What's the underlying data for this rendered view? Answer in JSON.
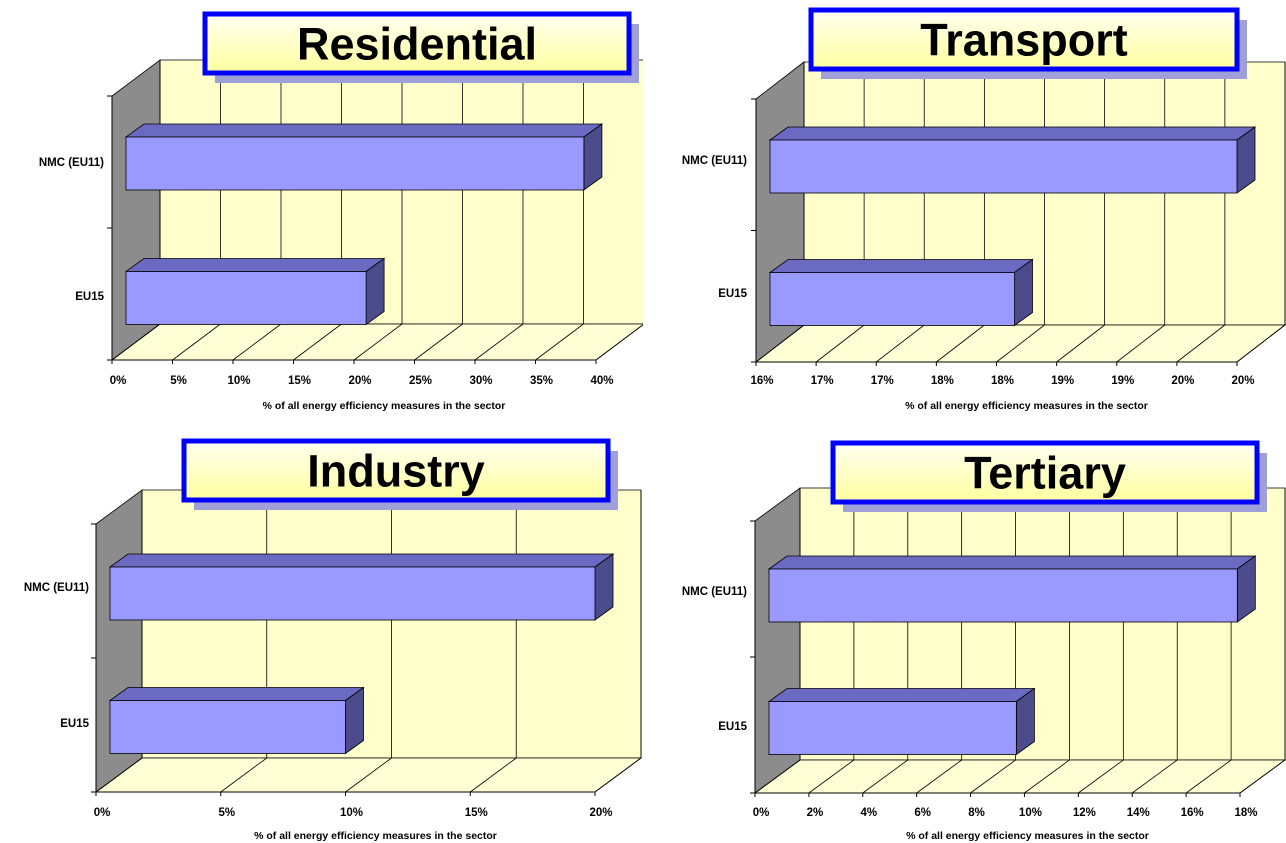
{
  "colors": {
    "wall_back": "#FFFFCC",
    "wall_floor": "#FFFFD6",
    "wall_side": "#8C8C8C",
    "bar_front": "#9999FF",
    "bar_top": "#6A6AC2",
    "bar_side": "#4C4C8C",
    "title_border": "#0000FF",
    "title_shadow": "#9FA0D8"
  },
  "chart_data": [
    {
      "type": "bar",
      "orientation": "horizontal-3d",
      "title": "Residential",
      "categories": [
        "NMC (EU11)",
        "EU15"
      ],
      "values": [
        0.39,
        0.21
      ],
      "xlim": [
        0,
        0.4
      ],
      "xticks": [
        "0%",
        "5%",
        "10%",
        "15%",
        "20%",
        "25%",
        "30%",
        "35%",
        "40%"
      ],
      "xlabel": "% of all energy efficiency measures in the sector",
      "grid": true
    },
    {
      "type": "bar",
      "orientation": "horizontal-3d",
      "title": "Transport",
      "categories": [
        "NMC (EU11)",
        "EU15"
      ],
      "values": [
        0.2,
        0.1815
      ],
      "xlim": [
        0.16,
        0.2
      ],
      "xticks": [
        "16%",
        "17%",
        "17%",
        "18%",
        "18%",
        "19%",
        "19%",
        "20%",
        "20%"
      ],
      "xlabel": "% of all energy efficiency measures in the sector",
      "grid": true
    },
    {
      "type": "bar",
      "orientation": "horizontal-3d",
      "title": "Industry",
      "categories": [
        "NMC (EU11)",
        "EU15"
      ],
      "values": [
        0.2,
        0.1
      ],
      "xlim": [
        0,
        0.2
      ],
      "xticks": [
        "0%",
        "5%",
        "10%",
        "15%",
        "20%"
      ],
      "xlabel": "% of all energy efficiency measures in the sector",
      "grid": true
    },
    {
      "type": "bar",
      "orientation": "horizontal-3d",
      "title": "Tertiary",
      "categories": [
        "NMC (EU11)",
        "EU15"
      ],
      "values": [
        0.179,
        0.097
      ],
      "xlim": [
        0,
        0.18
      ],
      "xticks": [
        "0%",
        "2%",
        "4%",
        "6%",
        "8%",
        "10%",
        "12%",
        "14%",
        "16%",
        "18%"
      ],
      "xlabel": "% of all energy efficiency measures in the sector",
      "grid": true
    }
  ]
}
